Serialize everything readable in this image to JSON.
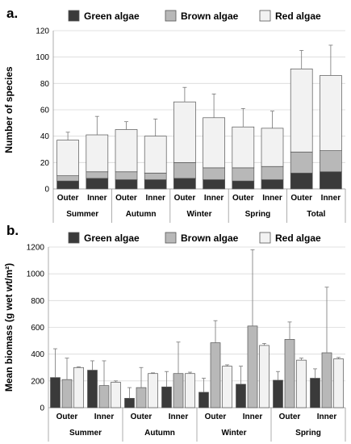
{
  "colors": {
    "green": "#3a3a3a",
    "brown": "#b8b8b8",
    "red": "#f2f2f2",
    "outline": "#555555",
    "grid": "#d9d9d9"
  },
  "chart_data": [
    {
      "type": "bar",
      "stacked": true,
      "panel_label": "a.",
      "ylabel": "Number of species",
      "ylim": [
        0,
        120
      ],
      "yticks": [
        0,
        20,
        40,
        60,
        80,
        100,
        120
      ],
      "legend": {
        "position": "top",
        "entries": [
          "Green algae",
          "Brown algae",
          "Red algae"
        ]
      },
      "sites": [
        "Outer",
        "Inner"
      ],
      "seasons": [
        "Summer",
        "Autumn",
        "Winter",
        "Spring",
        "Total"
      ],
      "series": [
        {
          "name": "Green algae",
          "values": [
            6,
            8,
            7,
            7,
            8,
            7,
            6,
            7,
            12,
            13
          ]
        },
        {
          "name": "Brown algae",
          "values": [
            4,
            5,
            6,
            5,
            12,
            9,
            10,
            10,
            16,
            16
          ]
        },
        {
          "name": "Red algae",
          "values": [
            27,
            28,
            32,
            28,
            46,
            38,
            31,
            29,
            63,
            57
          ]
        }
      ],
      "error_tops": [
        43,
        55,
        51,
        53,
        77,
        72,
        61,
        59,
        105,
        109
      ]
    },
    {
      "type": "bar",
      "panel_label": "b.",
      "ylabel": "Mean biomass (g wet wt/m²)",
      "ylim": [
        0,
        1200
      ],
      "yticks": [
        0,
        200,
        400,
        600,
        800,
        1000,
        1200
      ],
      "legend": {
        "position": "top",
        "entries": [
          "Green algae",
          "Brown algae",
          "Red algae"
        ]
      },
      "sites": [
        "Outer",
        "Inner"
      ],
      "seasons": [
        "Summer",
        "Autumn",
        "Winter",
        "Spring"
      ],
      "series": [
        {
          "name": "Green algae",
          "values": [
            225,
            280,
            70,
            155,
            115,
            175,
            205,
            220
          ],
          "error_tops": [
            440,
            350,
            150,
            270,
            220,
            310,
            270,
            290
          ]
        },
        {
          "name": "Brown algae",
          "values": [
            210,
            165,
            150,
            255,
            485,
            610,
            510,
            410
          ],
          "error_tops": [
            370,
            350,
            300,
            490,
            650,
            1180,
            640,
            900
          ]
        },
        {
          "name": "Red algae",
          "values": [
            300,
            190,
            255,
            255,
            310,
            465,
            355,
            365
          ],
          "error_tops": [
            305,
            200,
            260,
            265,
            320,
            480,
            370,
            375
          ]
        }
      ]
    }
  ]
}
